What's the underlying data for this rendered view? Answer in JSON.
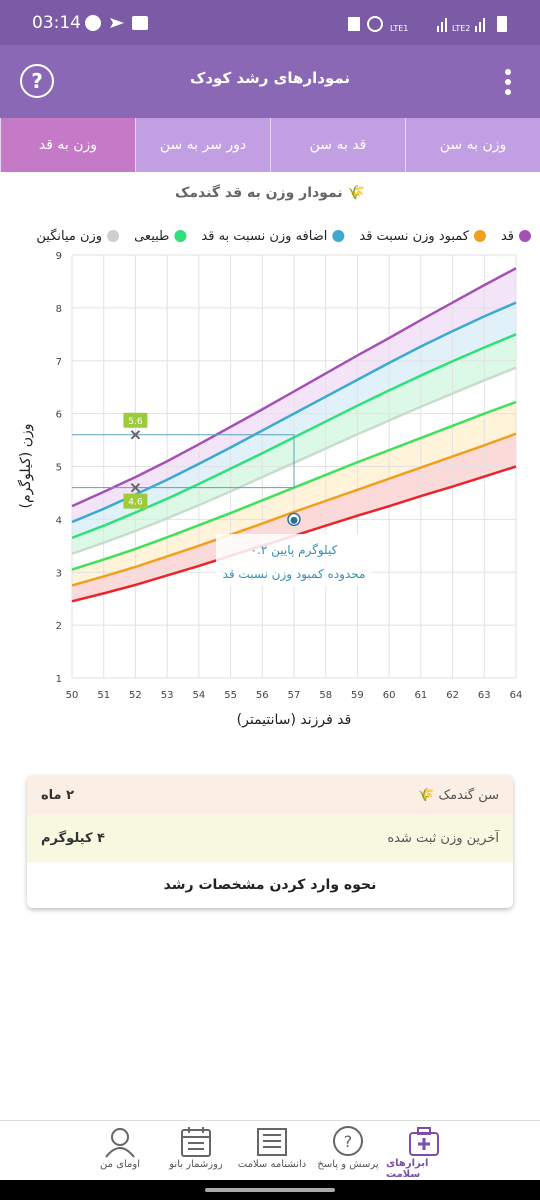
{
  "status_bar": {
    "time": "03:14",
    "sim1": "LTE1",
    "sim2": "LTE2"
  },
  "header": {
    "title": "نمودارهای رشد کودک",
    "help": "?"
  },
  "tabs": [
    "وزن به سن",
    "قد به سن",
    "دور سر به سن",
    "وزن به قد"
  ],
  "chart_data": {
    "type": "line",
    "title": "نمودار وزن به قد گندمک 🌾",
    "xlabel": "قد فرزند (سانتیمتر)",
    "ylabel": "وزن (کیلوگرم)",
    "legend": [
      {
        "label": "قد",
        "color": "#a550b5"
      },
      {
        "label": "کمبود وزن نسبت قد",
        "color": "#f0a020"
      },
      {
        "label": "اضافه وزن نسبت به قد",
        "color": "#3ba9d0"
      },
      {
        "label": "طبیعی",
        "color": "#2ee07a"
      },
      {
        "label": "وزن میانگین",
        "color": "#cfcfcf"
      }
    ],
    "x": [
      50,
      51,
      52,
      53,
      54,
      55,
      56,
      57,
      58,
      59,
      60,
      61,
      62,
      63,
      64
    ],
    "series": [
      {
        "color": "#a550b5",
        "band": "#f3e5f7",
        "values": [
          4.25,
          4.52,
          4.8,
          5.1,
          5.42,
          5.75,
          6.08,
          6.42,
          6.76,
          7.1,
          7.43,
          7.77,
          8.1,
          8.43,
          8.75
        ]
      },
      {
        "color": "#3ba9d0",
        "band": "#e0f1f9",
        "values": [
          3.95,
          4.2,
          4.47,
          4.75,
          5.05,
          5.36,
          5.68,
          6.0,
          6.32,
          6.64,
          6.96,
          7.27,
          7.56,
          7.84,
          8.1
        ]
      },
      {
        "color": "#2ee07a",
        "band": "#dcf8e6",
        "values": [
          3.65,
          3.88,
          4.13,
          4.39,
          4.67,
          4.96,
          5.25,
          5.55,
          5.85,
          6.15,
          6.44,
          6.72,
          6.99,
          7.25,
          7.5
        ]
      },
      {
        "color": "#c8dccd",
        "values": [
          3.35,
          3.56,
          3.78,
          4.02,
          4.27,
          4.53,
          4.8,
          5.07,
          5.34,
          5.61,
          5.87,
          6.13,
          6.38,
          6.63,
          6.87
        ]
      },
      {
        "color": "#3fe05a",
        "band": "#fff3d9",
        "values": [
          3.05,
          3.24,
          3.44,
          3.66,
          3.89,
          4.12,
          4.36,
          4.6,
          4.84,
          5.08,
          5.31,
          5.54,
          5.77,
          6.0,
          6.22
        ]
      },
      {
        "color": "#f0a020",
        "band": "#fddada",
        "values": [
          2.75,
          2.92,
          3.1,
          3.3,
          3.5,
          3.71,
          3.92,
          4.14,
          4.35,
          4.56,
          4.77,
          4.98,
          5.19,
          5.4,
          5.62
        ]
      },
      {
        "color": "#e8262a",
        "values": [
          2.45,
          2.6,
          2.76,
          2.94,
          3.12,
          3.31,
          3.5,
          3.69,
          3.88,
          4.07,
          4.25,
          4.44,
          4.62,
          4.81,
          5.0
        ]
      }
    ],
    "markers": [
      {
        "x": 52,
        "y": 5.6,
        "label": "5.6"
      },
      {
        "x": 52,
        "y": 4.6,
        "label": "4.6"
      }
    ],
    "point": {
      "x": 57,
      "y": 4
    },
    "annotation": [
      "۰.۲ کیلوگرم پایین",
      "محدوده کمبود وزن نسبت قد"
    ],
    "xlim": [
      50,
      64
    ],
    "ylim": [
      1,
      9
    ],
    "xticks": [
      50,
      51,
      52,
      53,
      54,
      55,
      56,
      57,
      58,
      59,
      60,
      61,
      62,
      63,
      64
    ],
    "yticks": [
      1,
      2,
      3,
      4,
      5,
      6,
      7,
      8,
      9
    ],
    "grid": true
  },
  "info_card": {
    "rows": [
      {
        "label": "سن گندمک 🌾",
        "value": "۲ ماه"
      },
      {
        "label": "آخرین وزن ثبت شده",
        "value": "۴ کیلوگرم"
      }
    ],
    "button": "نحوه وارد کردن مشخصات رشد"
  },
  "bottom_nav": [
    "ابزارهای سلامت",
    "پرسش و پاسخ",
    "دانشنامه سلامت",
    "روزشمار بانو",
    "اومای من"
  ]
}
